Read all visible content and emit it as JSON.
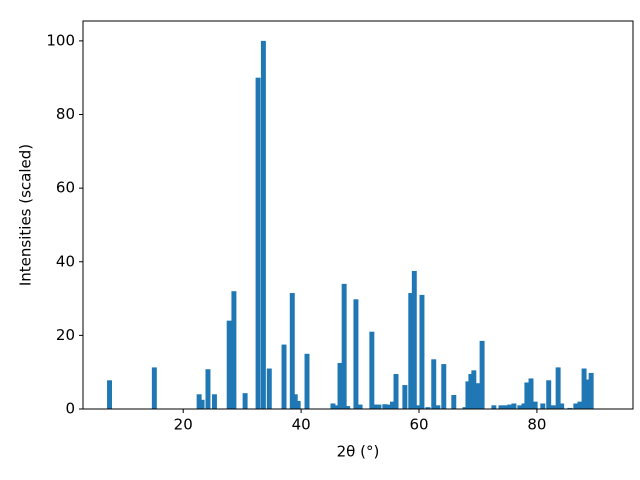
{
  "chart_data": {
    "type": "bar",
    "xlabel": "2θ (°)",
    "ylabel": "Intensities (scaled)",
    "color": "#1f77b4",
    "x": [
      7.5,
      15.1,
      22.7,
      23.2,
      24.2,
      25.3,
      27.8,
      28.6,
      30.5,
      32.7,
      33.6,
      34.6,
      37.1,
      38.5,
      39.0,
      39.5,
      41.0,
      45.4,
      46.1,
      46.6,
      47.3,
      47.9,
      49.3,
      50.0,
      52.0,
      52.5,
      53.2,
      54.2,
      54.8,
      55.5,
      56.1,
      57.6,
      58.6,
      59.2,
      59.7,
      60.5,
      61.5,
      62.5,
      63.2,
      64.2,
      65.9,
      67.8,
      68.3,
      68.8,
      69.3,
      70.0,
      70.7,
      72.7,
      73.9,
      74.7,
      75.4,
      76.1,
      77.1,
      77.8,
      78.3,
      79.0,
      79.7,
      81.0,
      82.0,
      82.8,
      83.6,
      84.2,
      85.6,
      86.6,
      87.3,
      88.0,
      88.8,
      89.2
    ],
    "values": [
      7.8,
      11.3,
      4.0,
      2.5,
      10.8,
      4.0,
      24.0,
      32.0,
      4.3,
      90.0,
      100.0,
      11.0,
      17.5,
      31.5,
      4.0,
      2.2,
      15.0,
      1.5,
      1.0,
      12.5,
      34.0,
      0.8,
      29.8,
      1.2,
      21.0,
      1.2,
      1.2,
      1.3,
      1.2,
      2.0,
      9.5,
      6.5,
      31.5,
      37.5,
      1.0,
      31.0,
      0.5,
      13.5,
      1.0,
      12.2,
      3.8,
      0.5,
      7.5,
      9.5,
      10.5,
      7.0,
      18.5,
      1.0,
      1.0,
      1.0,
      1.2,
      1.5,
      1.0,
      1.5,
      7.2,
      8.3,
      2.0,
      1.5,
      7.8,
      1.0,
      11.3,
      1.5,
      0.3,
      1.5,
      2.0,
      11.0,
      8.0,
      9.8
    ],
    "xlim": [
      3.0,
      96.3
    ],
    "ylim": [
      0,
      105.4
    ],
    "xticks": [
      20,
      40,
      60,
      80
    ],
    "yticks": [
      0,
      20,
      40,
      60,
      80,
      100
    ]
  }
}
